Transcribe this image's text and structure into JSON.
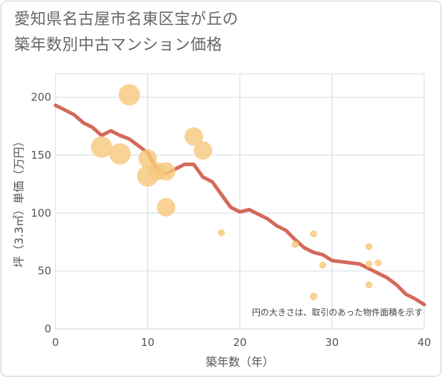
{
  "title_line1": "愛知県名古屋市名東区宝が丘の",
  "title_line2": "築年数別中古マンション価格",
  "chart_data": {
    "type": "scatter",
    "xlabel": "築年数（年）",
    "ylabel": "坪（3.3㎡）単価（万円）",
    "xlim": [
      0,
      40
    ],
    "ylim": [
      0,
      220
    ],
    "xticks": [
      0,
      10,
      20,
      30,
      40
    ],
    "yticks": [
      0,
      50,
      100,
      150,
      200
    ],
    "grid": true,
    "note": "円の大きさは、取引のあった物件面積を示す",
    "colors": {
      "bubble": "#f7c97e",
      "line": "#d4695a",
      "grid": "#cfdbe6"
    },
    "points": [
      {
        "x": 5,
        "y": 157,
        "size": 3
      },
      {
        "x": 7,
        "y": 151,
        "size": 3
      },
      {
        "x": 8,
        "y": 202,
        "size": 3
      },
      {
        "x": 10,
        "y": 147,
        "size": 2.5
      },
      {
        "x": 10,
        "y": 132,
        "size": 3
      },
      {
        "x": 11,
        "y": 136,
        "size": 2.5
      },
      {
        "x": 12,
        "y": 136,
        "size": 2.5
      },
      {
        "x": 12,
        "y": 105,
        "size": 2.5
      },
      {
        "x": 15,
        "y": 166,
        "size": 2.5
      },
      {
        "x": 16,
        "y": 154,
        "size": 2.5
      },
      {
        "x": 18,
        "y": 83,
        "size": 0.5
      },
      {
        "x": 26,
        "y": 73,
        "size": 0.5
      },
      {
        "x": 28,
        "y": 82,
        "size": 0.5
      },
      {
        "x": 28,
        "y": 28,
        "size": 0.6
      },
      {
        "x": 29,
        "y": 55,
        "size": 0.5
      },
      {
        "x": 34,
        "y": 71,
        "size": 0.5
      },
      {
        "x": 34,
        "y": 56,
        "size": 0.5
      },
      {
        "x": 34,
        "y": 38,
        "size": 0.5
      },
      {
        "x": 35,
        "y": 57,
        "size": 0.5
      }
    ],
    "trend": {
      "x": [
        0,
        1,
        2,
        3,
        4,
        5,
        6,
        7,
        8,
        9,
        10,
        11,
        12,
        13,
        14,
        15,
        16,
        17,
        18,
        19,
        20,
        21,
        22,
        23,
        24,
        25,
        26,
        27,
        28,
        29,
        30,
        31,
        32,
        33,
        34,
        35,
        36,
        37,
        38,
        39,
        40
      ],
      "y": [
        193,
        189,
        185,
        178,
        174,
        167,
        171,
        167,
        164,
        158,
        152,
        138,
        134,
        138,
        142,
        142,
        131,
        127,
        116,
        105,
        101,
        103,
        99,
        95,
        89,
        85,
        77,
        70,
        66,
        64,
        59,
        58,
        57,
        56,
        52,
        48,
        44,
        38,
        30,
        26,
        21
      ]
    }
  }
}
